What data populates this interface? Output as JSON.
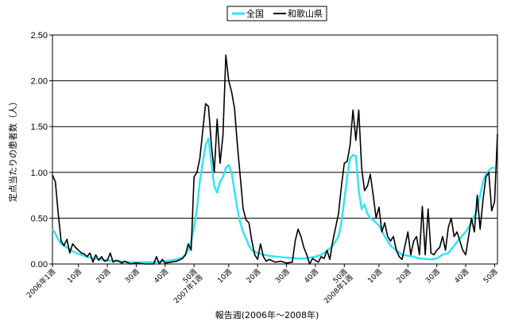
{
  "chart_data": {
    "type": "line",
    "title": "",
    "xlabel": "報告週(2006年〜2008年)",
    "ylabel": "定点当たりの患者数（人）",
    "ylim": [
      0,
      2.5
    ],
    "yticks": [
      "0.00",
      "0.50",
      "1.00",
      "1.50",
      "2.00",
      "2.50"
    ],
    "x_range": [
      1,
      155
    ],
    "xticks": [
      {
        "week": 1,
        "lines": [
          "2006年1週"
        ]
      },
      {
        "week": 10,
        "lines": [
          "10週"
        ]
      },
      {
        "week": 20,
        "lines": [
          "20週"
        ]
      },
      {
        "week": 30,
        "lines": [
          "30週"
        ]
      },
      {
        "week": 40,
        "lines": [
          "40週"
        ]
      },
      {
        "week": 50,
        "lines": [
          "50週",
          "2007年1週"
        ]
      },
      {
        "week": 62,
        "lines": [
          "10週"
        ]
      },
      {
        "week": 72,
        "lines": [
          "20週"
        ]
      },
      {
        "week": 82,
        "lines": [
          "30週"
        ]
      },
      {
        "week": 92,
        "lines": [
          "40週"
        ]
      },
      {
        "week": 102,
        "lines": [
          "50週",
          "2008年1週"
        ]
      },
      {
        "week": 114,
        "lines": [
          "10週"
        ]
      },
      {
        "week": 124,
        "lines": [
          "20週"
        ]
      },
      {
        "week": 134,
        "lines": [
          "30週"
        ]
      },
      {
        "week": 144,
        "lines": [
          "40週"
        ]
      },
      {
        "week": 154,
        "lines": [
          "50週"
        ]
      }
    ],
    "grid": true,
    "legend": "top-center",
    "series": [
      {
        "name": "全国",
        "color": "#33e5f0",
        "points": [
          [
            1,
            0.38
          ],
          [
            2,
            0.33
          ],
          [
            3,
            0.27
          ],
          [
            4,
            0.22
          ],
          [
            5,
            0.2
          ],
          [
            6,
            0.18
          ],
          [
            7,
            0.16
          ],
          [
            8,
            0.14
          ],
          [
            9,
            0.12
          ],
          [
            10,
            0.11
          ],
          [
            12,
            0.09
          ],
          [
            14,
            0.07
          ],
          [
            16,
            0.06
          ],
          [
            18,
            0.05
          ],
          [
            20,
            0.04
          ],
          [
            24,
            0.03
          ],
          [
            28,
            0.02
          ],
          [
            32,
            0.02
          ],
          [
            36,
            0.02
          ],
          [
            40,
            0.03
          ],
          [
            42,
            0.04
          ],
          [
            44,
            0.05
          ],
          [
            46,
            0.07
          ],
          [
            47,
            0.1
          ],
          [
            48,
            0.15
          ],
          [
            49,
            0.25
          ],
          [
            50,
            0.4
          ],
          [
            51,
            0.6
          ],
          [
            52,
            0.9
          ],
          [
            53,
            1.1
          ],
          [
            54,
            1.3
          ],
          [
            55,
            1.37
          ],
          [
            56,
            1.1
          ],
          [
            57,
            0.85
          ],
          [
            58,
            0.78
          ],
          [
            59,
            0.9
          ],
          [
            60,
            0.95
          ],
          [
            61,
            1.05
          ],
          [
            62,
            1.08
          ],
          [
            63,
            1.0
          ],
          [
            64,
            0.8
          ],
          [
            65,
            0.6
          ],
          [
            66,
            0.45
          ],
          [
            67,
            0.35
          ],
          [
            68,
            0.28
          ],
          [
            69,
            0.2
          ],
          [
            70,
            0.15
          ],
          [
            72,
            0.12
          ],
          [
            74,
            0.1
          ],
          [
            78,
            0.08
          ],
          [
            82,
            0.07
          ],
          [
            86,
            0.06
          ],
          [
            88,
            0.06
          ],
          [
            90,
            0.07
          ],
          [
            92,
            0.08
          ],
          [
            94,
            0.1
          ],
          [
            96,
            0.14
          ],
          [
            98,
            0.2
          ],
          [
            100,
            0.3
          ],
          [
            101,
            0.45
          ],
          [
            102,
            0.7
          ],
          [
            103,
            0.95
          ],
          [
            104,
            1.15
          ],
          [
            105,
            1.19
          ],
          [
            106,
            1.18
          ],
          [
            107,
            0.8
          ],
          [
            108,
            0.6
          ],
          [
            109,
            0.65
          ],
          [
            110,
            0.55
          ],
          [
            111,
            0.5
          ],
          [
            112,
            0.48
          ],
          [
            114,
            0.42
          ],
          [
            116,
            0.3
          ],
          [
            118,
            0.2
          ],
          [
            120,
            0.15
          ],
          [
            122,
            0.1
          ],
          [
            124,
            0.09
          ],
          [
            126,
            0.08
          ],
          [
            128,
            0.06
          ],
          [
            132,
            0.05
          ],
          [
            134,
            0.06
          ],
          [
            136,
            0.1
          ],
          [
            138,
            0.12
          ],
          [
            140,
            0.2
          ],
          [
            142,
            0.28
          ],
          [
            144,
            0.35
          ],
          [
            146,
            0.45
          ],
          [
            148,
            0.6
          ],
          [
            149,
            0.75
          ],
          [
            150,
            0.9
          ],
          [
            151,
            0.98
          ],
          [
            152,
            1.02
          ],
          [
            153,
            1.05
          ],
          [
            154,
            1.05
          ]
        ]
      },
      {
        "name": "和歌山県",
        "color": "#000000",
        "points": [
          [
            1,
            0.97
          ],
          [
            2,
            0.9
          ],
          [
            3,
            0.55
          ],
          [
            4,
            0.25
          ],
          [
            5,
            0.2
          ],
          [
            6,
            0.27
          ],
          [
            7,
            0.12
          ],
          [
            8,
            0.22
          ],
          [
            9,
            0.18
          ],
          [
            10,
            0.15
          ],
          [
            11,
            0.12
          ],
          [
            12,
            0.11
          ],
          [
            13,
            0.08
          ],
          [
            14,
            0.12
          ],
          [
            15,
            0.02
          ],
          [
            16,
            0.1
          ],
          [
            17,
            0.04
          ],
          [
            18,
            0.08
          ],
          [
            19,
            0.03
          ],
          [
            20,
            0.04
          ],
          [
            21,
            0.12
          ],
          [
            22,
            0.02
          ],
          [
            23,
            0.04
          ],
          [
            24,
            0.03
          ],
          [
            25,
            0.01
          ],
          [
            26,
            0.03
          ],
          [
            28,
            0.0
          ],
          [
            30,
            0.01
          ],
          [
            33,
            0.0
          ],
          [
            36,
            0.0
          ],
          [
            37,
            0.08
          ],
          [
            38,
            0.0
          ],
          [
            39,
            0.05
          ],
          [
            40,
            0.01
          ],
          [
            42,
            0.02
          ],
          [
            44,
            0.03
          ],
          [
            46,
            0.06
          ],
          [
            47,
            0.1
          ],
          [
            48,
            0.22
          ],
          [
            49,
            0.15
          ],
          [
            50,
            0.95
          ],
          [
            51,
            1.0
          ],
          [
            52,
            1.15
          ],
          [
            53,
            1.45
          ],
          [
            54,
            1.75
          ],
          [
            55,
            1.72
          ],
          [
            56,
            1.3
          ],
          [
            57,
            1.0
          ],
          [
            58,
            1.58
          ],
          [
            59,
            1.1
          ],
          [
            60,
            1.4
          ],
          [
            61,
            2.28
          ],
          [
            62,
            2.0
          ],
          [
            63,
            1.88
          ],
          [
            64,
            1.7
          ],
          [
            65,
            1.3
          ],
          [
            66,
            0.95
          ],
          [
            67,
            0.6
          ],
          [
            68,
            0.48
          ],
          [
            69,
            0.45
          ],
          [
            70,
            0.25
          ],
          [
            71,
            0.1
          ],
          [
            72,
            0.05
          ],
          [
            73,
            0.22
          ],
          [
            74,
            0.08
          ],
          [
            75,
            0.03
          ],
          [
            76,
            0.05
          ],
          [
            78,
            0.02
          ],
          [
            80,
            0.03
          ],
          [
            82,
            0.01
          ],
          [
            84,
            0.02
          ],
          [
            85,
            0.25
          ],
          [
            86,
            0.38
          ],
          [
            87,
            0.3
          ],
          [
            88,
            0.18
          ],
          [
            89,
            0.1
          ],
          [
            90,
            0.0
          ],
          [
            91,
            0.06
          ],
          [
            92,
            0.04
          ],
          [
            93,
            0.02
          ],
          [
            94,
            0.08
          ],
          [
            95,
            0.06
          ],
          [
            96,
            0.15
          ],
          [
            97,
            0.05
          ],
          [
            98,
            0.25
          ],
          [
            99,
            0.4
          ],
          [
            100,
            0.55
          ],
          [
            101,
            0.85
          ],
          [
            102,
            1.1
          ],
          [
            103,
            1.12
          ],
          [
            104,
            1.3
          ],
          [
            105,
            1.68
          ],
          [
            106,
            1.35
          ],
          [
            107,
            1.68
          ],
          [
            108,
            1.05
          ],
          [
            109,
            0.8
          ],
          [
            110,
            0.85
          ],
          [
            111,
            0.98
          ],
          [
            112,
            0.75
          ],
          [
            113,
            0.5
          ],
          [
            114,
            0.62
          ],
          [
            115,
            0.35
          ],
          [
            116,
            0.45
          ],
          [
            117,
            0.3
          ],
          [
            118,
            0.25
          ],
          [
            119,
            0.3
          ],
          [
            120,
            0.15
          ],
          [
            121,
            0.08
          ],
          [
            122,
            0.05
          ],
          [
            123,
            0.2
          ],
          [
            124,
            0.35
          ],
          [
            125,
            0.1
          ],
          [
            126,
            0.25
          ],
          [
            127,
            0.3
          ],
          [
            128,
            0.1
          ],
          [
            129,
            0.63
          ],
          [
            130,
            0.1
          ],
          [
            131,
            0.6
          ],
          [
            132,
            0.12
          ],
          [
            133,
            0.1
          ],
          [
            134,
            0.15
          ],
          [
            135,
            0.18
          ],
          [
            136,
            0.3
          ],
          [
            137,
            0.15
          ],
          [
            138,
            0.4
          ],
          [
            139,
            0.5
          ],
          [
            140,
            0.3
          ],
          [
            141,
            0.35
          ],
          [
            142,
            0.25
          ],
          [
            143,
            0.15
          ],
          [
            144,
            0.1
          ],
          [
            145,
            0.3
          ],
          [
            146,
            0.5
          ],
          [
            147,
            0.35
          ],
          [
            148,
            0.75
          ],
          [
            149,
            0.38
          ],
          [
            150,
            0.7
          ],
          [
            151,
            0.95
          ],
          [
            152,
            1.0
          ],
          [
            153,
            0.58
          ],
          [
            154,
            0.68
          ],
          [
            155,
            1.42
          ]
        ]
      }
    ]
  }
}
